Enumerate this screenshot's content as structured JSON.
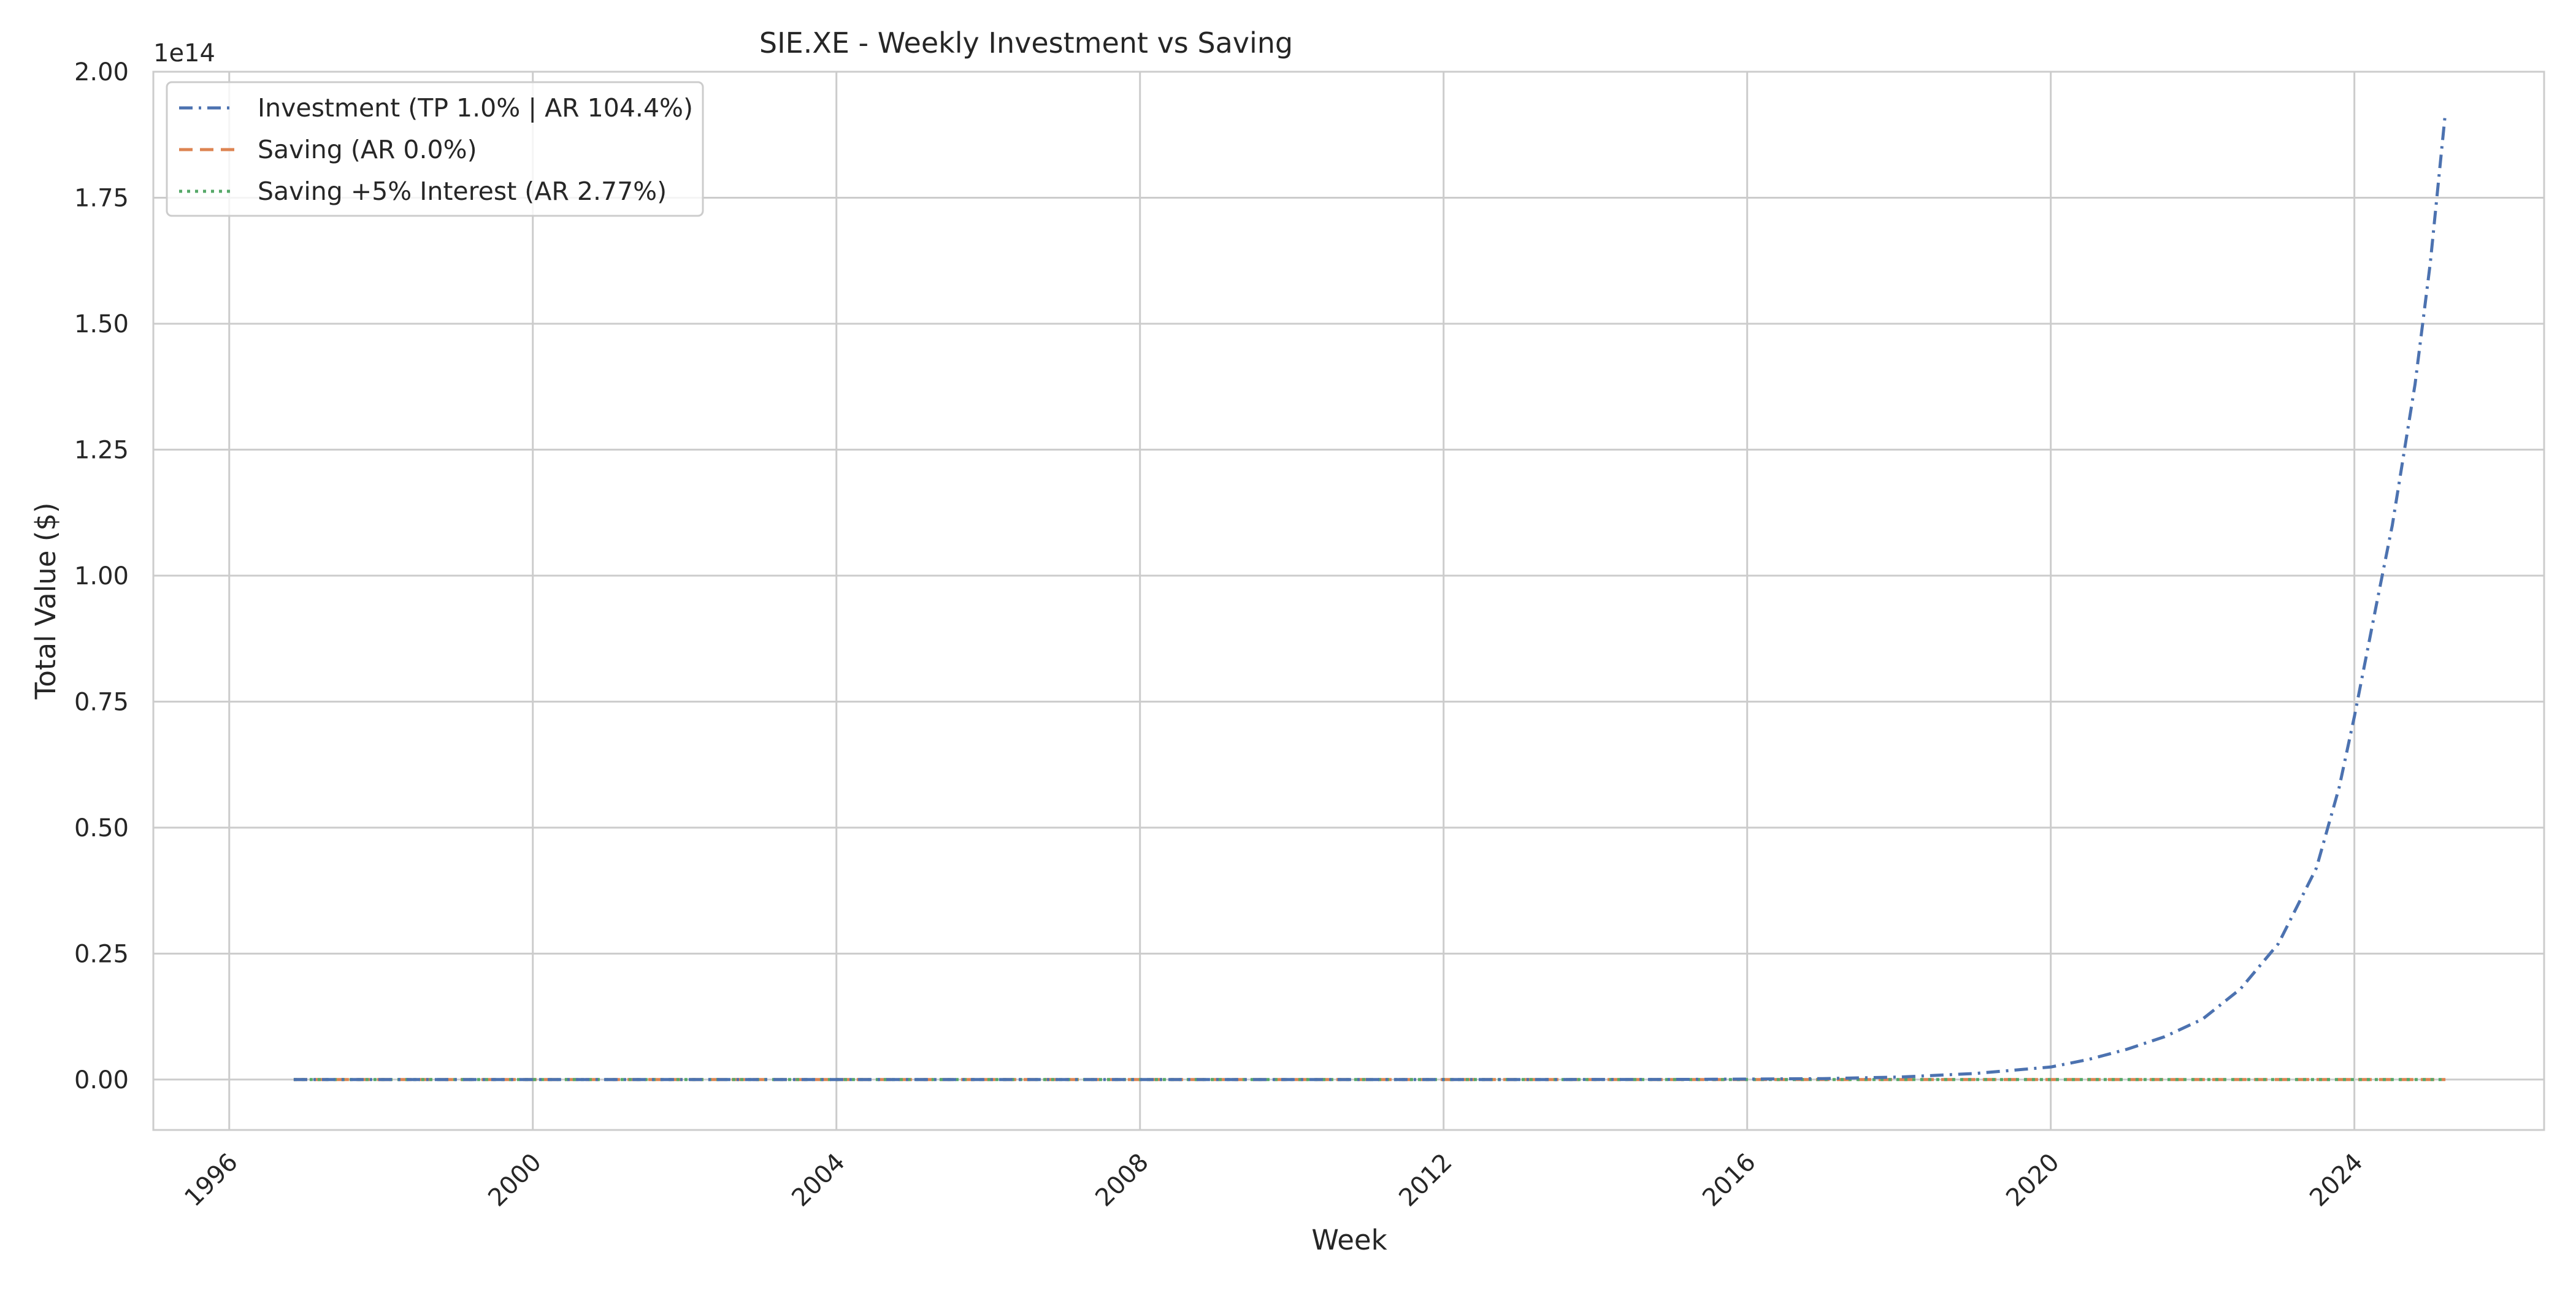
{
  "chart_data": {
    "type": "line",
    "title": "SIE.XE - Weekly Investment vs Saving",
    "xlabel": "Week",
    "ylabel": "Total Value ($)",
    "y_offset_label": "1e14",
    "y_scale_factor": 100000000000000,
    "xlim": [
      1995.0,
      2026.5
    ],
    "ylim": [
      -0.1,
      2.0
    ],
    "x_ticks": [
      1996,
      2000,
      2004,
      2008,
      2012,
      2016,
      2020,
      2024
    ],
    "x_tick_labels": [
      "1996",
      "2000",
      "2004",
      "2008",
      "2012",
      "2016",
      "2020",
      "2024"
    ],
    "y_ticks": [
      0,
      0.25,
      0.5,
      0.75,
      1.0,
      1.25,
      1.5,
      1.75,
      2.0
    ],
    "y_tick_labels": [
      "0.00",
      "0.25",
      "0.50",
      "0.75",
      "1.00",
      "1.25",
      "1.50",
      "1.75",
      "2.00"
    ],
    "grid": true,
    "legend_position": "top-left",
    "series": [
      {
        "name": "Investment (TP 1.0% | AR 104.4%)",
        "color": "#4c72b0",
        "linestyle": "dashdot",
        "x": [
          1996.85,
          2000,
          2004,
          2008,
          2012,
          2015,
          2016,
          2017,
          2018,
          2019,
          2020,
          2020.5,
          2021,
          2021.5,
          2022,
          2022.5,
          2023,
          2023.5,
          2023.8,
          2024,
          2024.3,
          2024.5,
          2024.8,
          2025,
          2025.2
        ],
        "y": [
          0,
          0,
          0,
          0,
          0,
          0.0003,
          0.001,
          0.002,
          0.005,
          0.012,
          0.025,
          0.04,
          0.06,
          0.085,
          0.12,
          0.18,
          0.27,
          0.42,
          0.58,
          0.72,
          0.95,
          1.1,
          1.38,
          1.62,
          1.92
        ]
      },
      {
        "name": "Saving (AR 0.0%)",
        "color": "#dd8452",
        "linestyle": "dashed",
        "x": [
          1996.85,
          2025.2
        ],
        "y": [
          0,
          0
        ]
      },
      {
        "name": "Saving +5% Interest (AR 2.77%)",
        "color": "#55a868",
        "linestyle": "dotted",
        "x": [
          1996.85,
          2025.2
        ],
        "y": [
          0,
          0
        ]
      }
    ]
  }
}
